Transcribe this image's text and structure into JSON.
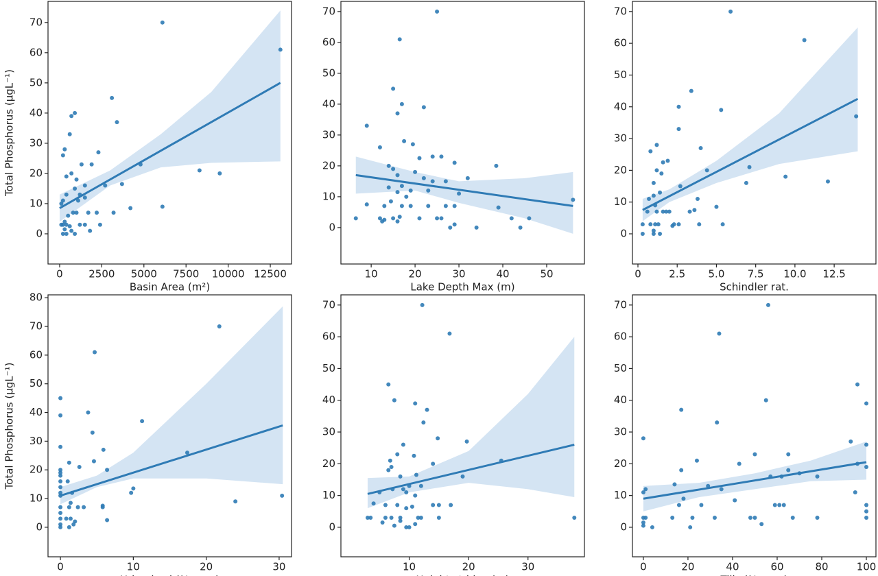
{
  "chart_data": [
    {
      "type": "scatter",
      "xlabel": "Basin Area (m²)",
      "ylabel": "Total Phosphorus (μgL⁻¹)",
      "color": "#2f7bb5",
      "band_color": "#c6dbef",
      "x": [
        6100,
        13100,
        3100,
        900,
        700,
        3400,
        600,
        300,
        200,
        2300,
        1300,
        1900,
        4800,
        8300,
        9500,
        400,
        700,
        1000,
        1500,
        2700,
        3700,
        900,
        1200,
        400,
        1500,
        1100,
        200,
        100,
        4200,
        6100,
        3200,
        1000,
        800,
        1700,
        2200,
        500,
        300,
        200,
        400,
        600,
        1200,
        1500,
        2400,
        300,
        700,
        200,
        400,
        900,
        1800,
        100
      ],
      "y": [
        70,
        61,
        45,
        40,
        39,
        37,
        33,
        28,
        26,
        27,
        23,
        23,
        23,
        21,
        20,
        19,
        20,
        18,
        16,
        16,
        16.5,
        15,
        13,
        13,
        12,
        11,
        11,
        10,
        8.5,
        9,
        7,
        7,
        7,
        7,
        7,
        6,
        4,
        3,
        3,
        2.5,
        3,
        3,
        3,
        1.5,
        1,
        0,
        0,
        0,
        1,
        3
      ],
      "fit": {
        "x": [
          0,
          13100
        ],
        "y": [
          8.5,
          50
        ]
      },
      "band": {
        "x": [
          0,
          3000,
          6000,
          9000,
          13100
        ],
        "lower": [
          4,
          16,
          22,
          23.5,
          24
        ],
        "upper": [
          13,
          21,
          33,
          47,
          74
        ]
      },
      "xlim": [
        -690,
        13760
      ],
      "ylim": [
        -10,
        77
      ],
      "xticks": [
        0,
        2500,
        5000,
        7500,
        10000,
        12500
      ],
      "yticks": [
        0,
        10,
        20,
        30,
        40,
        50,
        60,
        70
      ]
    },
    {
      "type": "scatter",
      "xlabel": "Lake Depth Max (m)",
      "color": "#2f7bb5",
      "band_color": "#c6dbef",
      "x": [
        25,
        16.5,
        15,
        17,
        16,
        22,
        9,
        12,
        17.5,
        19.5,
        24,
        26,
        21,
        29,
        38.5,
        14,
        15,
        20,
        16,
        24,
        32,
        22,
        27,
        14,
        17,
        19,
        23,
        16,
        30,
        18,
        14.5,
        9,
        13,
        17,
        19,
        23,
        27,
        29,
        39,
        6.5,
        12,
        13,
        15,
        16.5,
        21,
        25,
        26,
        42,
        46,
        16,
        12.5,
        29,
        34,
        28,
        44,
        56
      ],
      "y": [
        70,
        61,
        45,
        40,
        37,
        39,
        33,
        26,
        28,
        27,
        23,
        23,
        22.5,
        21,
        20,
        20,
        19,
        18,
        17,
        15,
        16,
        16,
        15,
        13,
        13.5,
        12,
        12,
        11.5,
        11,
        10,
        8.5,
        7.5,
        7,
        7,
        7,
        7,
        7,
        7,
        6.5,
        3,
        3,
        2.5,
        3,
        3.5,
        3,
        3,
        3,
        3,
        3,
        2,
        2,
        1,
        0,
        0,
        0,
        9
      ],
      "fit": {
        "x": [
          6.5,
          56
        ],
        "y": [
          17,
          7
        ]
      },
      "band": {
        "x": [
          6.5,
          20,
          30,
          45,
          56
        ],
        "lower": [
          11,
          12,
          8,
          3,
          -2
        ],
        "upper": [
          23,
          18,
          15,
          16,
          18
        ]
      },
      "xlim": [
        3.1,
        58.6
      ],
      "ylim": [
        -11.8,
        73.3
      ],
      "xticks": [
        10,
        20,
        30,
        40,
        50
      ],
      "yticks": [
        0,
        10,
        20,
        30,
        40,
        50,
        60,
        70
      ]
    },
    {
      "type": "scatter",
      "xlabel": "Schindler rat.",
      "color": "#2f7bb5",
      "band_color": "#c6dbef",
      "x": [
        5.9,
        10.6,
        3.4,
        2.6,
        5.3,
        13.9,
        2.6,
        1.2,
        0.8,
        4,
        1.9,
        1.6,
        7.1,
        1.2,
        4.4,
        1.5,
        9.4,
        6.9,
        12.1,
        2.7,
        1,
        1.4,
        1,
        0.7,
        3.8,
        1.1,
        5,
        0.6,
        1.2,
        1.6,
        2,
        3.3,
        3.6,
        1.8,
        0.3,
        0.8,
        1.3,
        2.2,
        2.6,
        3.9,
        5.4,
        1,
        1.4,
        0.3,
        1,
        2.3,
        1.1
      ],
      "y": [
        70,
        61,
        45,
        40,
        39,
        37,
        33,
        28,
        26,
        27,
        23,
        22.5,
        21,
        20,
        20,
        19,
        18,
        16,
        16.5,
        15,
        16,
        13,
        12,
        11,
        11,
        9,
        8.5,
        7,
        7,
        7,
        7,
        7,
        7.5,
        7,
        3,
        3,
        3,
        2.5,
        3,
        3,
        3,
        1,
        0,
        0,
        0,
        3,
        3
      ],
      "fit": {
        "x": [
          0.3,
          14
        ],
        "y": [
          7.5,
          42.5
        ]
      },
      "band": {
        "x": [
          0.3,
          2,
          5,
          9,
          14
        ],
        "lower": [
          4,
          10,
          16,
          22,
          26
        ],
        "upper": [
          11,
          14,
          23,
          38,
          65
        ]
      },
      "xlim": [
        -0.35,
        15.16
      ],
      "ylim": [
        -9.5,
        73.2
      ],
      "xticks": [
        0.0,
        2.5,
        {
          "value": 5,
          "label": "5.0"
        },
        7.5,
        {
          "value": 10,
          "label": "10.0"
        },
        12.5
      ],
      "yticks": [
        0,
        10,
        20,
        30,
        40,
        50,
        60,
        70
      ]
    },
    {
      "type": "scatter",
      "xlabel": "Urbanised (% area)",
      "ylabel": "Total Phosphorus (μgL⁻¹)",
      "color": "#2f7bb5",
      "band_color": "#c6dbef",
      "x": [
        21.8,
        4.7,
        0,
        0,
        3.8,
        11.2,
        4.4,
        0,
        5.9,
        17.4,
        4.6,
        1.2,
        2.6,
        0,
        0,
        0,
        6.4,
        0,
        1,
        0,
        10,
        9.7,
        0,
        0,
        1.6,
        30.4,
        24,
        1.4,
        0,
        1.2,
        2.4,
        3.2,
        5.8,
        5.8,
        0,
        0,
        0.8,
        1.4,
        2,
        6.4,
        1.8,
        0,
        0,
        1.2
      ],
      "y": [
        70,
        61,
        45,
        39,
        40,
        37,
        33,
        28,
        27,
        26,
        23,
        22.5,
        21,
        20,
        19,
        18,
        20,
        16,
        16,
        14,
        13.5,
        12,
        12,
        11,
        12,
        11,
        9,
        8.5,
        7,
        7,
        7,
        7,
        7.5,
        7,
        5,
        3,
        3,
        3,
        2,
        2.5,
        1,
        1,
        0,
        0
      ],
      "fit": {
        "x": [
          0,
          30.5
        ],
        "y": [
          11,
          35.5
        ]
      },
      "band": {
        "x": [
          0,
          5,
          10,
          20,
          30.5
        ],
        "lower": [
          8,
          14,
          17,
          17,
          15
        ],
        "upper": [
          14,
          18,
          26,
          50,
          77
        ]
      },
      "xlim": [
        -1.7,
        31.7
      ],
      "ylim": [
        -10.3,
        81
      ],
      "xticks": [
        0,
        10,
        20,
        30
      ],
      "yticks": [
        0,
        10,
        20,
        30,
        40,
        50,
        60,
        70,
        80
      ]
    },
    {
      "type": "scatter",
      "xlabel": "Height stddev (m)",
      "color": "#2f7bb5",
      "band_color": "#c6dbef",
      "x": [
        12.2,
        16.8,
        6.5,
        7.5,
        11,
        13,
        12.4,
        14.8,
        19.7,
        9,
        8,
        10.8,
        25.5,
        6.8,
        14,
        7,
        6.5,
        8.5,
        19,
        11.2,
        10,
        12,
        7.2,
        9,
        9.5,
        5,
        11,
        4,
        6,
        8,
        9.5,
        10.5,
        14,
        15,
        17,
        3,
        3.5,
        6,
        7,
        8.5,
        11.5,
        12,
        15,
        37.8,
        5.5,
        7.5,
        9.5,
        10,
        11,
        8.5
      ],
      "y": [
        70,
        61,
        45,
        40,
        39,
        37,
        33,
        28,
        27,
        26,
        23,
        22.5,
        21,
        21,
        20,
        19,
        18,
        16,
        16,
        16.5,
        13,
        13,
        12,
        12,
        11,
        11,
        10,
        7.5,
        7,
        7,
        6,
        6.5,
        7,
        7,
        7,
        3,
        3,
        3,
        3,
        3,
        3,
        3,
        3,
        3,
        1.5,
        0.5,
        0,
        0,
        1,
        2
      ],
      "fit": {
        "x": [
          3,
          37.8
        ],
        "y": [
          10.5,
          26
        ]
      },
      "band": {
        "x": [
          3,
          10,
          20,
          30,
          37.8
        ],
        "lower": [
          6,
          11,
          14,
          12,
          9.5
        ],
        "upper": [
          15.5,
          16,
          24,
          42,
          60
        ]
      },
      "xlim": [
        -1.5,
        39.5
      ],
      "ylim": [
        -9.3,
        73.2
      ],
      "xticks": [
        10,
        20,
        30
      ],
      "yticks": [
        0,
        10,
        20,
        30,
        40,
        50,
        60,
        70
      ]
    },
    {
      "type": "scatter",
      "xlabel": "Tills (% area)",
      "color": "#2f7bb5",
      "band_color": "#c6dbef",
      "x": [
        56,
        34,
        96,
        55,
        100,
        17,
        33,
        0,
        93,
        100,
        43,
        24,
        50,
        65,
        96,
        100,
        57,
        62,
        78,
        65,
        17,
        70,
        29,
        14,
        35,
        0,
        1,
        95,
        18,
        41,
        59,
        61,
        63,
        16,
        26,
        100,
        100,
        100,
        0,
        1,
        13,
        22,
        32,
        48,
        50,
        67,
        78,
        53,
        0,
        4,
        21,
        0
      ],
      "y": [
        70,
        61,
        45,
        40,
        39,
        37,
        33,
        28,
        27,
        26,
        20,
        21,
        23,
        23,
        20,
        19,
        16,
        16,
        16,
        18,
        18,
        17,
        13,
        13.5,
        12,
        11,
        12,
        11,
        9,
        8.5,
        7,
        7,
        7,
        7,
        7,
        7,
        5,
        3,
        3,
        3,
        3,
        3,
        3,
        3,
        3,
        3,
        3,
        1,
        1.5,
        0,
        0,
        0.5
      ],
      "fit": {
        "x": [
          0,
          100
        ],
        "y": [
          9,
          20.5
        ]
      },
      "band": {
        "x": [
          0,
          25,
          50,
          75,
          100
        ],
        "lower": [
          5,
          9.5,
          12,
          14.5,
          15
        ],
        "upper": [
          13,
          14,
          17,
          21,
          27
        ]
      },
      "xlim": [
        -4.9,
        104.3
      ],
      "ylim": [
        -9.3,
        73.2
      ],
      "xticks": [
        0,
        20,
        40,
        60,
        80,
        100
      ],
      "yticks": [
        0,
        10,
        20,
        30,
        40,
        50,
        60,
        70
      ]
    }
  ]
}
